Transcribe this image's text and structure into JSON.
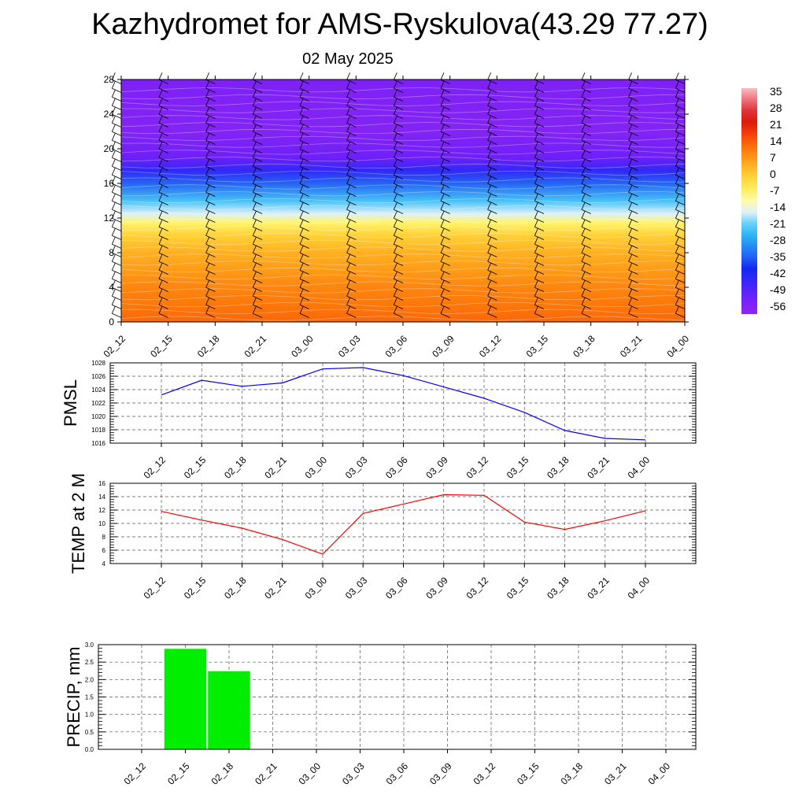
{
  "title": "Kazhydromet for AMS-Ryskulova(43.29 77.27)",
  "subtitle": "02 May 2025",
  "times": [
    "02_12",
    "02_15",
    "02_18",
    "02_21",
    "03_00",
    "03_03",
    "03_06",
    "03_09",
    "03_12",
    "03_15",
    "03_18",
    "03_21",
    "04_00"
  ],
  "colors": {
    "pmsl_line": "#0000ff",
    "temp_line": "#ff0000",
    "precip_bar": "#00ee00"
  },
  "chart_data": [
    {
      "type": "heatmap",
      "x": [
        "02_12",
        "02_15",
        "02_18",
        "02_21",
        "03_00",
        "03_03",
        "03_06",
        "03_09",
        "03_12",
        "03_15",
        "03_18",
        "03_21",
        "04_00"
      ],
      "yticks": [
        0,
        4,
        8,
        12,
        16,
        20,
        24,
        28
      ],
      "ylim": [
        0,
        28
      ],
      "note_overlay": "wind barbs",
      "colorbar": {
        "labels": [
          "35",
          "28",
          "21",
          "14",
          "7",
          "0",
          "-7",
          "-14",
          "-21",
          "-28",
          "-35",
          "-42",
          "-49",
          "-56"
        ],
        "range": [
          -63,
          42
        ]
      },
      "levels": [
        {
          "y": 0,
          "t": 16
        },
        {
          "y": 2,
          "t": 14
        },
        {
          "y": 4,
          "t": 12
        },
        {
          "y": 6,
          "t": 9
        },
        {
          "y": 8,
          "t": 6
        },
        {
          "y": 10,
          "t": 1
        },
        {
          "y": 11.5,
          "t": -7
        },
        {
          "y": 12.5,
          "t": -16
        },
        {
          "y": 14,
          "t": -24
        },
        {
          "y": 16,
          "t": -36
        },
        {
          "y": 17.5,
          "t": -47
        },
        {
          "y": 19,
          "t": -55
        },
        {
          "y": 22,
          "t": -60
        },
        {
          "y": 28,
          "t": -58
        }
      ]
    },
    {
      "type": "line",
      "ylabel": "PMSL",
      "x": [
        "02_12",
        "02_15",
        "02_18",
        "02_21",
        "03_00",
        "03_03",
        "03_06",
        "03_09",
        "03_12",
        "03_15",
        "03_18",
        "03_21",
        "04_00"
      ],
      "series": [
        {
          "values": [
            1023.2,
            1025.4,
            1024.5,
            1025.0,
            1027.1,
            1027.3,
            1026.1,
            1024.4,
            1022.7,
            1020.6,
            1017.9,
            1016.7,
            1016.5
          ]
        }
      ],
      "ylim": [
        1016,
        1028
      ],
      "yticks": [
        "1016",
        "1018",
        "1020",
        "1022",
        "1024",
        "1026",
        "1028"
      ],
      "grid": true
    },
    {
      "type": "line",
      "ylabel": "TEMP at 2 M",
      "x": [
        "02_12",
        "02_15",
        "02_18",
        "02_21",
        "03_00",
        "03_03",
        "03_06",
        "03_09",
        "03_12",
        "03_15",
        "03_18",
        "03_21",
        "04_00"
      ],
      "series": [
        {
          "values": [
            11.8,
            10.5,
            9.3,
            7.6,
            5.4,
            11.5,
            12.9,
            14.3,
            14.2,
            10.2,
            9.1,
            10.4,
            11.9
          ]
        }
      ],
      "ylim": [
        4,
        16
      ],
      "yticks": [
        "4",
        "6",
        "8",
        "10",
        "12",
        "14",
        "16"
      ],
      "grid": true
    },
    {
      "type": "bar",
      "ylabel": "PRECIP, mm",
      "categories": [
        "02_12",
        "02_15",
        "02_18",
        "02_21",
        "03_00",
        "03_03",
        "03_06",
        "03_09",
        "03_12",
        "03_15",
        "03_18",
        "03_21",
        "04_00"
      ],
      "values": [
        0,
        2.88,
        2.24,
        0,
        0,
        0,
        0,
        0,
        0,
        0,
        0,
        0,
        0
      ],
      "ylim": [
        0,
        3.0
      ],
      "yticks": [
        "0.0",
        "0.5",
        "1.0",
        "1.5",
        "2.0",
        "2.5",
        "3.0"
      ],
      "grid": true
    }
  ]
}
